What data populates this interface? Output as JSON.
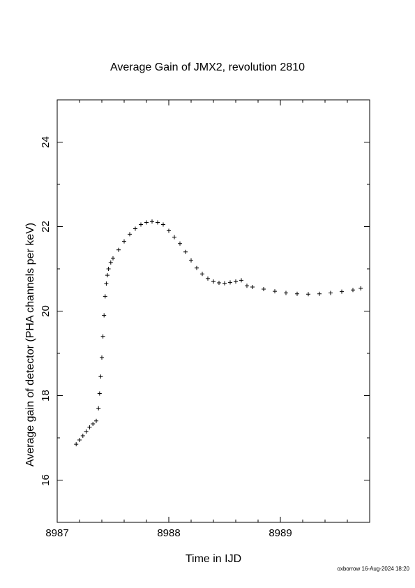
{
  "chart_data": {
    "type": "scatter",
    "title": "Average Gain of JMX2, revolution 2810",
    "xlabel": "Time in IJD",
    "ylabel": "Average gain of detector (PHA channels per keV)",
    "xlim": [
      8987.0,
      8989.8
    ],
    "ylim": [
      15.0,
      25.0
    ],
    "x_ticks": [
      8987,
      8988,
      8989
    ],
    "y_ticks": [
      16,
      18,
      20,
      22,
      24
    ],
    "marker": "plus",
    "grid": false,
    "series": [
      {
        "x": [
          8987.17,
          8987.2,
          8987.23,
          8987.26,
          8987.29,
          8987.32,
          8987.35,
          8987.37,
          8987.38,
          8987.39,
          8987.4,
          8987.41,
          8987.42,
          8987.43,
          8987.44,
          8987.45,
          8987.46,
          8987.48,
          8987.5,
          8987.55,
          8987.6,
          8987.65,
          8987.7,
          8987.75,
          8987.8,
          8987.85,
          8987.9,
          8987.95,
          8988.0,
          8988.05,
          8988.1,
          8988.15,
          8988.2,
          8988.25,
          8988.3,
          8988.35,
          8988.4,
          8988.45,
          8988.5,
          8988.55,
          8988.6,
          8988.65,
          8988.7,
          8988.75,
          8988.85,
          8988.95,
          8989.05,
          8989.15,
          8989.25,
          8989.35,
          8989.45,
          8989.55,
          8989.65,
          8989.72
        ],
        "y": [
          16.85,
          16.95,
          17.05,
          17.15,
          17.25,
          17.33,
          17.4,
          17.7,
          18.05,
          18.45,
          18.9,
          19.4,
          19.9,
          20.35,
          20.65,
          20.85,
          21.0,
          21.15,
          21.25,
          21.45,
          21.65,
          21.82,
          21.95,
          22.05,
          22.1,
          22.12,
          22.1,
          22.05,
          21.9,
          21.75,
          21.6,
          21.4,
          21.2,
          21.02,
          20.88,
          20.77,
          20.7,
          20.67,
          20.66,
          20.68,
          20.7,
          20.73,
          20.6,
          20.57,
          20.52,
          20.47,
          20.43,
          20.41,
          20.4,
          20.41,
          20.43,
          20.46,
          20.5,
          20.54
        ]
      }
    ]
  },
  "footer": "oxborrow 16-Aug-2024 18:20"
}
